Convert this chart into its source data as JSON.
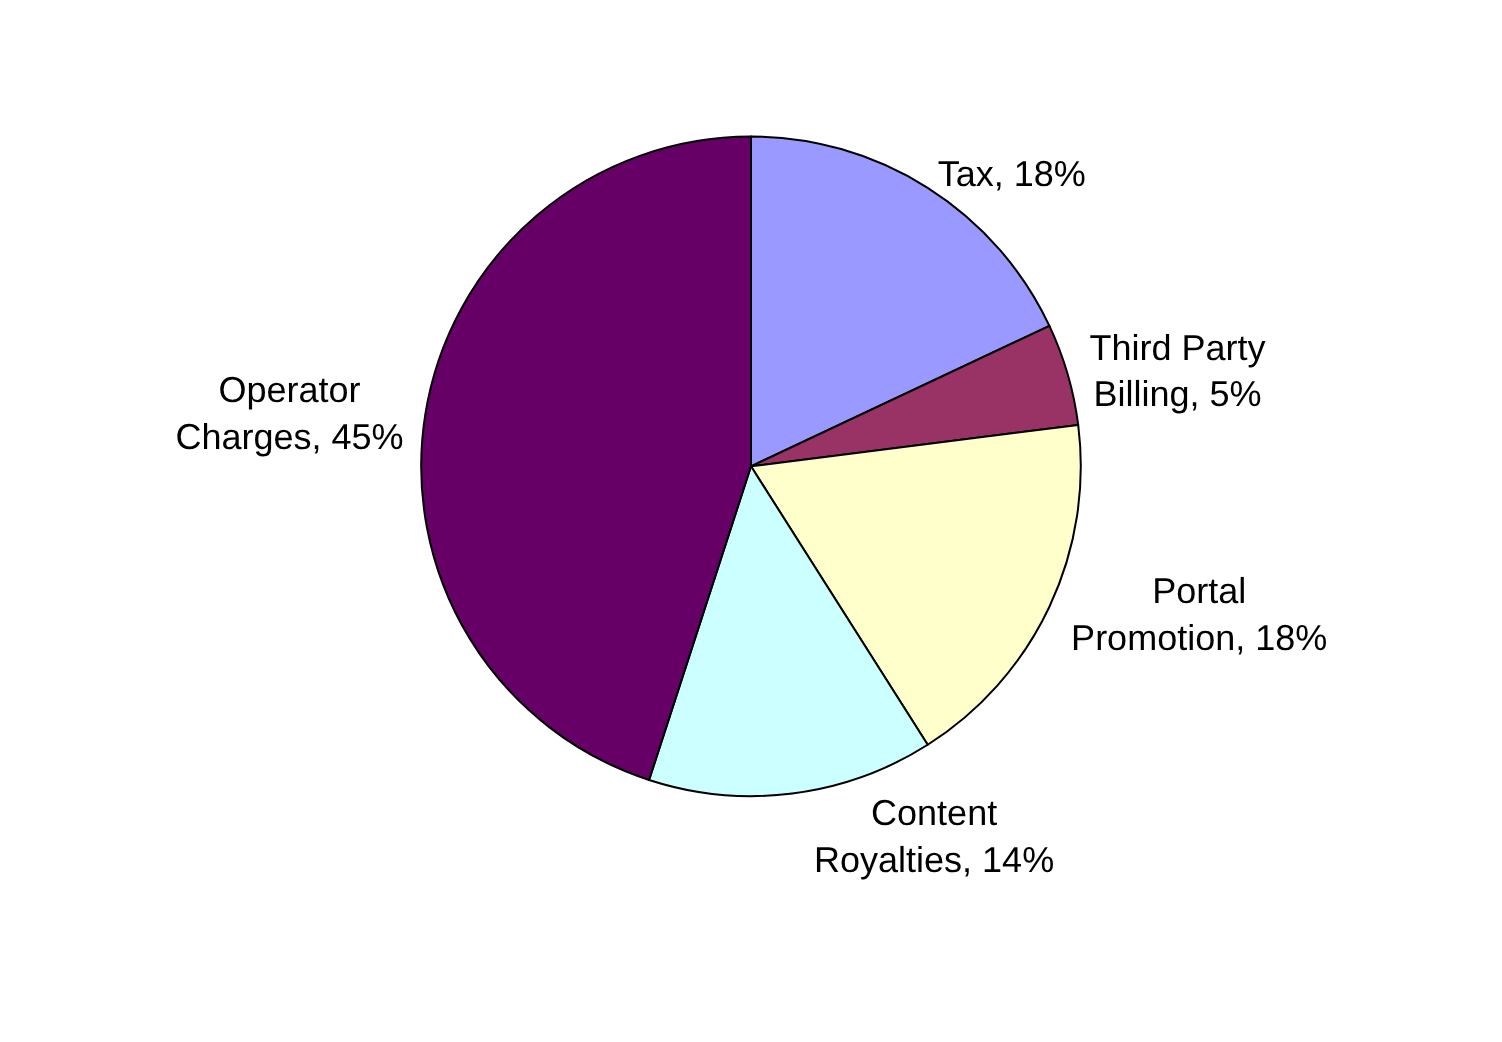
{
  "chart_data": {
    "type": "pie",
    "categories": [
      "Tax",
      "Third Party\nBilling",
      "Portal\nPromotion",
      "Content\nRoyalties",
      "Operator\nCharges"
    ],
    "values": [
      18,
      5,
      18,
      14,
      45
    ],
    "colors": [
      "#9999ff",
      "#993366",
      "#ffffcc",
      "#ccffff",
      "#660066"
    ],
    "value_labels": [
      "18%",
      "5%",
      "18%",
      "14%",
      "45%"
    ],
    "legend": false
  }
}
